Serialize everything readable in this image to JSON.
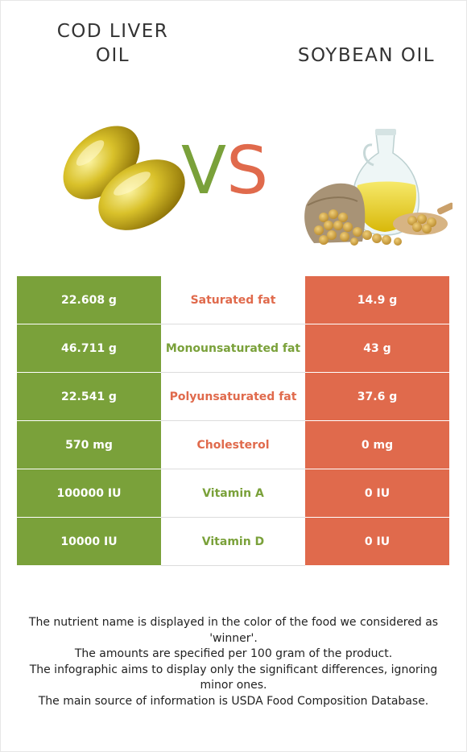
{
  "left_food": {
    "title": "COD LIVER OIL",
    "color": "#7aa13a"
  },
  "right_food": {
    "title": "SOYBEAN OIL",
    "color": "#e06a4c"
  },
  "vs": {
    "v": "V",
    "s": "S"
  },
  "nutrients": [
    {
      "name": "Saturated fat",
      "left": "22.608 g",
      "right": "14.9 g",
      "winner": "right"
    },
    {
      "name": "Monounsaturated fat",
      "left": "46.711 g",
      "right": "43 g",
      "winner": "left"
    },
    {
      "name": "Polyunsaturated fat",
      "left": "22.541 g",
      "right": "37.6 g",
      "winner": "right"
    },
    {
      "name": "Cholesterol",
      "left": "570 mg",
      "right": "0 mg",
      "winner": "right"
    },
    {
      "name": "Vitamin A",
      "left": "100000 IU",
      "right": "0 IU",
      "winner": "left"
    },
    {
      "name": "Vitamin D",
      "left": "10000 IU",
      "right": "0 IU",
      "winner": "left"
    }
  ],
  "footer": {
    "line1": "The nutrient name is displayed in the color of the food we considered as 'winner'.",
    "line2": "The amounts are specified per 100 gram of the product.",
    "line3": "The infographic aims to display only the significant differences, ignoring minor ones.",
    "line4": "The main source of information is USDA Food Composition Database."
  }
}
